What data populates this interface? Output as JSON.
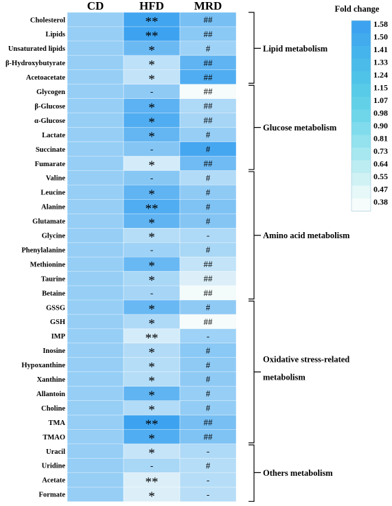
{
  "chart_data": {
    "type": "heatmap",
    "columns": [
      "CD",
      "HFD",
      "MRD"
    ],
    "rows": [
      "Cholesterol",
      "Lipids",
      "Unsaturated lipids",
      "β-Hydroxybutyrate",
      "Acetoacetate",
      "Glycogen",
      "β-Glucose",
      "α-Glucose",
      "Lactate",
      "Succinate",
      "Fumarate",
      "Valine",
      "Leucine",
      "Alanine",
      "Glutamate",
      "Glycine",
      "Phenylalanine",
      "Methionine",
      "Taurine",
      "Betaine",
      "GSSG",
      "GSH",
      "IMP",
      "Inosine",
      "Hypoxanthine",
      "Xanthine",
      "Allantoin",
      "Choline",
      "TMA",
      "TMAO",
      "Uracil",
      "Uridine",
      "Acetate",
      "Formate"
    ],
    "values": [
      [
        1.0,
        1.55,
        1.2
      ],
      [
        1.0,
        1.58,
        1.08
      ],
      [
        1.0,
        1.28,
        0.95
      ],
      [
        1.0,
        0.75,
        1.35
      ],
      [
        1.0,
        0.72,
        1.45
      ],
      [
        1.0,
        1.05,
        0.38
      ],
      [
        1.0,
        1.38,
        0.85
      ],
      [
        1.0,
        1.45,
        0.9
      ],
      [
        1.0,
        1.33,
        1.0
      ],
      [
        1.0,
        1.12,
        1.52
      ],
      [
        1.0,
        0.6,
        1.25
      ],
      [
        1.0,
        1.1,
        0.82
      ],
      [
        1.0,
        1.35,
        1.05
      ],
      [
        1.0,
        1.45,
        1.15
      ],
      [
        1.0,
        1.35,
        1.12
      ],
      [
        1.0,
        0.8,
        0.85
      ],
      [
        1.0,
        0.95,
        0.88
      ],
      [
        1.0,
        1.3,
        0.72
      ],
      [
        1.0,
        0.88,
        0.55
      ],
      [
        1.0,
        0.9,
        0.4
      ],
      [
        1.0,
        1.3,
        1.05
      ],
      [
        1.0,
        0.85,
        0.38
      ],
      [
        1.0,
        0.6,
        0.95
      ],
      [
        1.0,
        0.82,
        1.08
      ],
      [
        1.0,
        0.8,
        1.05
      ],
      [
        1.0,
        0.8,
        1.05
      ],
      [
        1.0,
        1.35,
        1.0
      ],
      [
        1.0,
        0.82,
        1.02
      ],
      [
        1.0,
        1.58,
        1.2
      ],
      [
        1.0,
        1.45,
        1.15
      ],
      [
        1.0,
        0.7,
        0.85
      ],
      [
        1.0,
        0.88,
        0.8
      ],
      [
        1.0,
        0.55,
        0.8
      ],
      [
        1.0,
        0.55,
        0.78
      ]
    ],
    "significance": [
      [
        "",
        "**",
        "##"
      ],
      [
        "",
        "**",
        "##"
      ],
      [
        "",
        "*",
        "#"
      ],
      [
        "",
        "*",
        "##"
      ],
      [
        "",
        "*",
        "##"
      ],
      [
        "",
        "-",
        "##"
      ],
      [
        "",
        "*",
        "##"
      ],
      [
        "",
        "*",
        "##"
      ],
      [
        "",
        "*",
        "#"
      ],
      [
        "",
        "-",
        "#"
      ],
      [
        "",
        "*",
        "##"
      ],
      [
        "",
        "-",
        "#"
      ],
      [
        "",
        "*",
        "#"
      ],
      [
        "",
        "**",
        "#"
      ],
      [
        "",
        "*",
        "#"
      ],
      [
        "",
        "*",
        "-"
      ],
      [
        "",
        "-",
        "#"
      ],
      [
        "",
        "*",
        "##"
      ],
      [
        "",
        "*",
        "##"
      ],
      [
        "",
        "-",
        "##"
      ],
      [
        "",
        "*",
        "#"
      ],
      [
        "",
        "*",
        "##"
      ],
      [
        "",
        "**",
        "-"
      ],
      [
        "",
        "*",
        "#"
      ],
      [
        "",
        "*",
        "#"
      ],
      [
        "",
        "*",
        "#"
      ],
      [
        "",
        "*",
        "#"
      ],
      [
        "",
        "*",
        "#"
      ],
      [
        "",
        "**",
        "##"
      ],
      [
        "",
        "*",
        "##"
      ],
      [
        "",
        "*",
        "-"
      ],
      [
        "",
        "-",
        "#"
      ],
      [
        "",
        "**",
        "-"
      ],
      [
        "",
        "*",
        "-"
      ]
    ],
    "groups": [
      {
        "label": "Lipid metabolism",
        "lines": [
          "Lipid metabolism"
        ],
        "start": 0,
        "end": 4
      },
      {
        "label": "Glucose metabolism",
        "lines": [
          "Glucose metabolism"
        ],
        "start": 5,
        "end": 10
      },
      {
        "label": "Amino acid metabolism",
        "lines": [
          "Amino acid metabolism"
        ],
        "start": 11,
        "end": 19
      },
      {
        "label": "Oxidative stress-related metabolism",
        "lines": [
          "Oxidative stress-related",
          "metabolism"
        ],
        "start": 20,
        "end": 29
      },
      {
        "label": "Others metabolism",
        "lines": [
          "Others metabolism"
        ],
        "start": 30,
        "end": 33
      }
    ],
    "legend": {
      "title": "Fold change",
      "ticks": [
        "1.58",
        "1.50",
        "1.41",
        "1.33",
        "1.24",
        "1.15",
        "1.07",
        "0.98",
        "0.90",
        "0.81",
        "0.73",
        "0.64",
        "0.55",
        "0.47",
        "0.38"
      ],
      "colors": [
        "#3da3f0",
        "#41abee",
        "#46b4ec",
        "#4bbcea",
        "#50c4e8",
        "#58cbe8",
        "#62d1e8",
        "#6fd6ea",
        "#80dcec",
        "#93e2ee",
        "#a7e8f0",
        "#bcedf2",
        "#d1f2f5",
        "#e6f8f8",
        "#f6fcfb"
      ],
      "placement": "top-right"
    },
    "color_scale": {
      "min": 0.38,
      "max": 1.58,
      "low_color": "#f6fcfb",
      "high_color": "#3da3f0"
    }
  }
}
